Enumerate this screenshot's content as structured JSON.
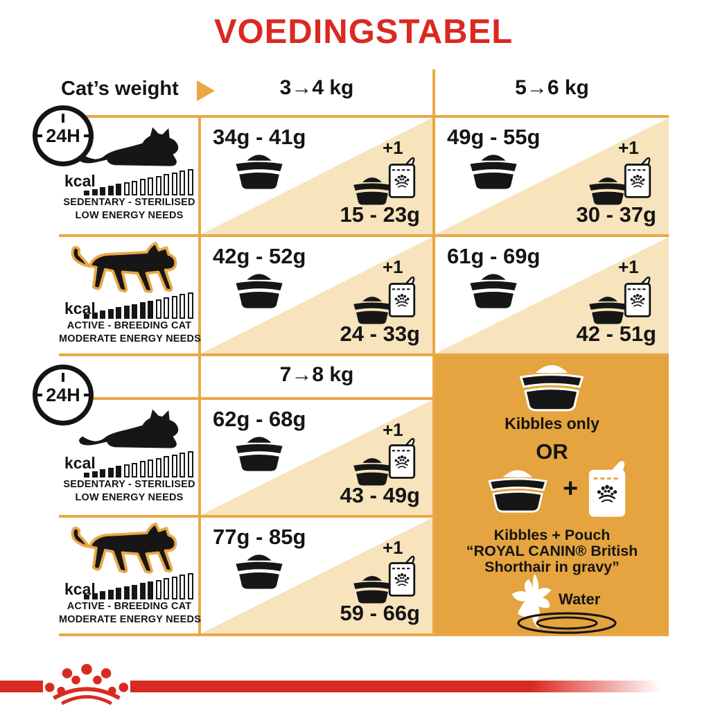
{
  "title": "VOEDINGSTABEL",
  "header": {
    "label": "Cat’s weight",
    "col_a": "3→4 kg",
    "col_b": "5→6 kg",
    "col_c": "7→8 kg"
  },
  "clock": "24H",
  "profiles": {
    "sedentary": {
      "kcal": "kcal",
      "caption1": "SEDENTARY - STERILISED",
      "caption2": "LOW ENERGY NEEDS",
      "bars_total": 14,
      "bars_filled": 5
    },
    "active": {
      "kcal": "kcal",
      "caption1": "ACTIVE - BREEDING CAT",
      "caption2": "MODERATE ENERGY NEEDS",
      "bars_total": 14,
      "bars_filled": 9
    }
  },
  "cells": [
    {
      "kibbles": "34g - 41g",
      "plus": "+1",
      "mix": "15 - 23g"
    },
    {
      "kibbles": "49g - 55g",
      "plus": "+1",
      "mix": "30 - 37g"
    },
    {
      "kibbles": "42g - 52g",
      "plus": "+1",
      "mix": "24 - 33g"
    },
    {
      "kibbles": "61g - 69g",
      "plus": "+1",
      "mix": "42 - 51g"
    },
    {
      "kibbles": "62g - 68g",
      "plus": "+1",
      "mix": "43 - 49g"
    },
    {
      "kibbles": "77g - 85g",
      "plus": "+1",
      "mix": "59 - 66g"
    }
  ],
  "panel": {
    "kibbles_only": "Kibbles only",
    "or": "OR",
    "plus": "+",
    "mix_line1": "Kibbles + Pouch",
    "mix_line2": "“ROYAL CANIN® British",
    "mix_line3": "Shorthair in gravy”",
    "water": "Water"
  },
  "colors": {
    "brand_red": "#D92A21",
    "panel_orange": "#E5A43F",
    "cell_tan": "#F7E3BC",
    "grid_line": "#E9A845",
    "ink": "#141414"
  }
}
